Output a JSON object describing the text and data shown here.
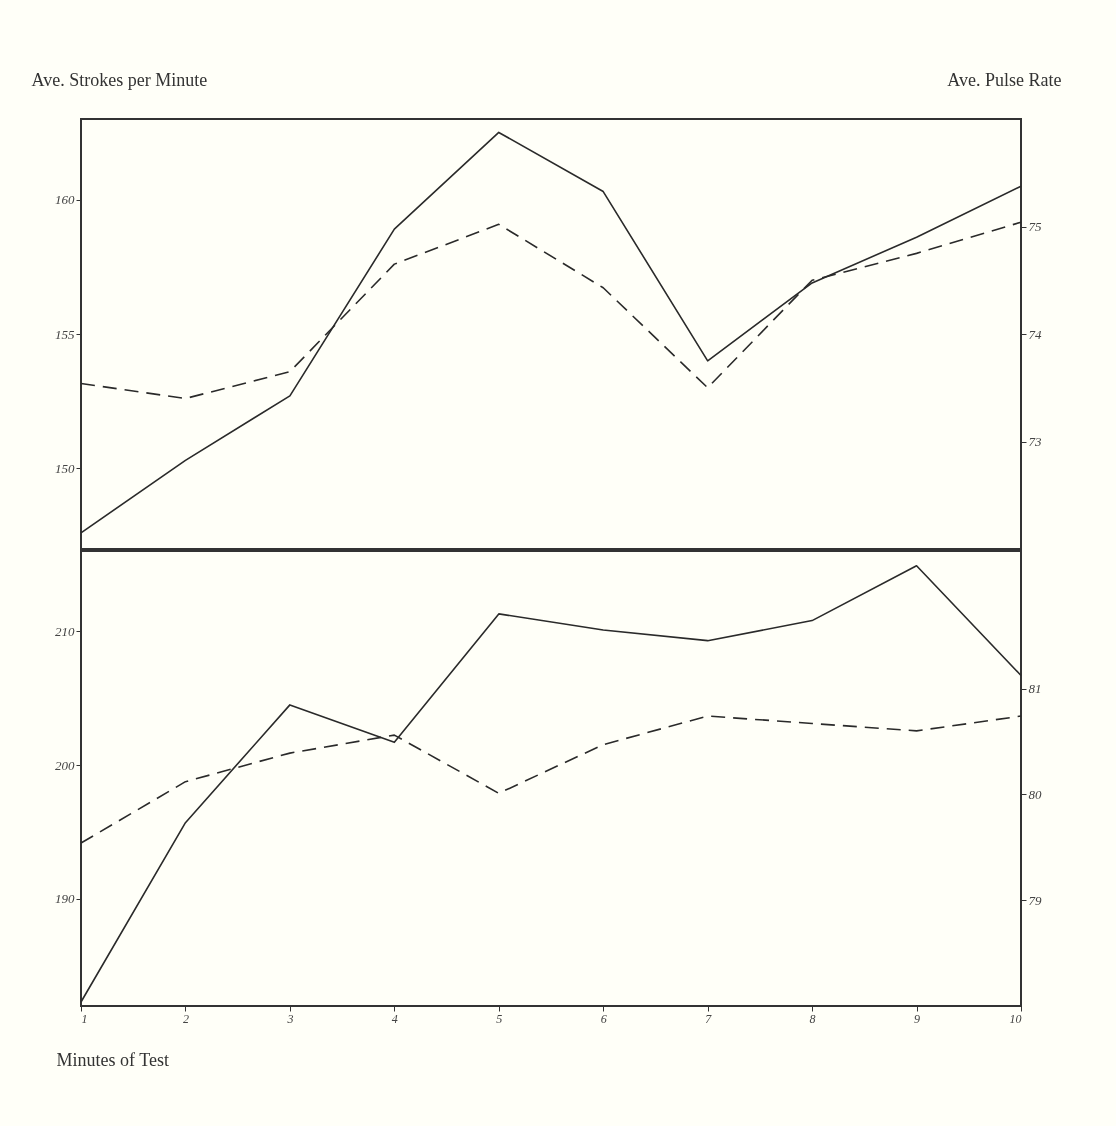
{
  "chart_data": [
    {
      "type": "line",
      "ylabel": "Ave. Strokes per Minute",
      "y2label": "Ave. Pulse Rate",
      "x": [
        1,
        2,
        3,
        4,
        5,
        6,
        7,
        8,
        9,
        10
      ],
      "xlim": [
        1,
        10
      ],
      "ylim": [
        147,
        163
      ],
      "yticks": [
        150,
        155,
        160
      ],
      "y2lim": [
        72,
        76
      ],
      "y2ticks": [
        73,
        74,
        75
      ],
      "tick_labels": "y",
      "series": [
        {
          "color": "#2a2a2a",
          "line_style": "solid",
          "values": [
            147.6,
            150.3,
            152.7,
            158.9,
            162.5,
            160.3,
            154.0,
            156.9,
            158.6,
            160.5
          ]
        },
        {
          "color": "#2a2a2a",
          "line_style": "dashed",
          "axis": "y2",
          "values": [
            73.54,
            73.4,
            73.65,
            74.65,
            75.02,
            74.43,
            73.5,
            74.5,
            74.75,
            75.04
          ]
        }
      ]
    },
    {
      "type": "line",
      "xlabel": "Minutes of Test",
      "x": [
        1,
        2,
        3,
        4,
        5,
        6,
        7,
        8,
        9,
        10
      ],
      "xlim": [
        1,
        10
      ],
      "xticks": [
        1,
        2,
        3,
        4,
        5,
        6,
        7,
        8,
        9,
        10
      ],
      "ylim": [
        182,
        216
      ],
      "yticks": [
        190,
        200,
        210
      ],
      "y2lim": [
        78,
        82.3
      ],
      "y2ticks": [
        79,
        80,
        81
      ],
      "series": [
        {
          "color": "#2a2a2a",
          "line_style": "solid",
          "values": [
            182.3,
            195.7,
            204.5,
            201.7,
            211.3,
            210.1,
            209.3,
            210.8,
            214.9,
            206.7
          ]
        },
        {
          "color": "#2a2a2a",
          "line_style": "dashed",
          "axis": "y2",
          "values": [
            79.54,
            80.12,
            80.39,
            80.56,
            80.01,
            80.47,
            80.74,
            80.67,
            80.6,
            80.74
          ]
        }
      ]
    }
  ]
}
